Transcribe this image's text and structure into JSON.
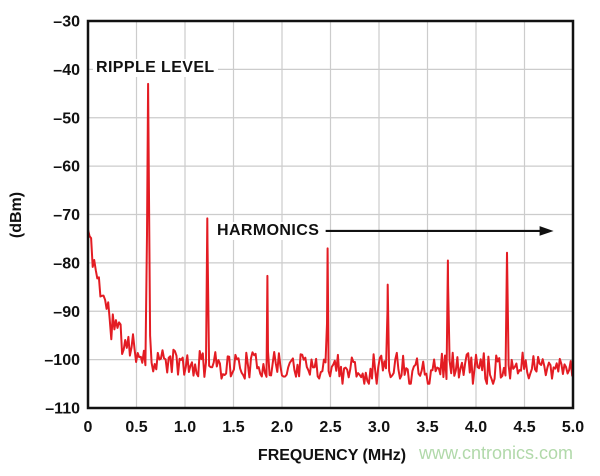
{
  "figure": {
    "background": "#ffffff",
    "trace_color": "#e31c23",
    "grid_color": "#cccccc",
    "frame_color": "#111111",
    "text_color": "#111111"
  },
  "labels": {
    "y_axis_title": "(dBm)",
    "x_axis_title": "FREQUENCY (MHz)",
    "ripple_label": "RIPPLE LEVEL",
    "harmonics_label": "HARMONICS"
  },
  "watermark": {
    "text": "www.cntronics.com",
    "color": "#b1d9aa"
  },
  "chart_data": {
    "type": "line",
    "title": "",
    "xlabel": "FREQUENCY (MHz)",
    "ylabel": "(dBm)",
    "xlim": [
      0,
      5
    ],
    "ylim": [
      -110,
      -30
    ],
    "grid": true,
    "legend": "none",
    "x_ticks": [
      0,
      0.5,
      1.0,
      1.5,
      2.0,
      2.5,
      3.0,
      3.5,
      4.0,
      4.5,
      5.0
    ],
    "x_tick_labels": [
      "0",
      "0.5",
      "1.0",
      "1.5",
      "2.0",
      "2.5",
      "3.0",
      "3.5",
      "4.0",
      "4.5",
      "5.0"
    ],
    "y_ticks": [
      -30,
      -40,
      -50,
      -60,
      -70,
      -80,
      -90,
      -100,
      -110
    ],
    "y_tick_labels": [
      "–30",
      "–40",
      "–50",
      "–60",
      "–70",
      "–80",
      "–90",
      "–100",
      "–110"
    ],
    "noise_floor_dbm": -101,
    "dc_rolloff": {
      "start_level_dbm": -74,
      "settles_by_mhz": 0.5
    },
    "peaks": [
      {
        "freq_mhz": 0.62,
        "level_dbm": -43.0,
        "note": "ripple fundamental"
      },
      {
        "freq_mhz": 1.23,
        "level_dbm": -70.8
      },
      {
        "freq_mhz": 1.85,
        "level_dbm": -82.7
      },
      {
        "freq_mhz": 2.47,
        "level_dbm": -77.0
      },
      {
        "freq_mhz": 3.09,
        "level_dbm": -84.5
      },
      {
        "freq_mhz": 3.71,
        "level_dbm": -79.5
      },
      {
        "freq_mhz": 4.32,
        "level_dbm": -77.9
      }
    ],
    "annotations": {
      "ripple_label": "RIPPLE LEVEL",
      "harmonics_label": "HARMONICS",
      "harmonics_arrow": {
        "from_mhz": 2.45,
        "to_mhz": 4.8,
        "at_dbm": -73.4
      }
    },
    "trace": {
      "seed": 11,
      "step_mhz": 0.016,
      "floor_dbm": -101.2,
      "hump_amp_db": 28,
      "hump_tau_mhz": 0.23,
      "jitter_db": 5.6,
      "dip_prob": 0.07,
      "dip_extra_db": 3.4,
      "min_dbm": -105,
      "peak_slope_db_per_mhz": 2600
    }
  }
}
